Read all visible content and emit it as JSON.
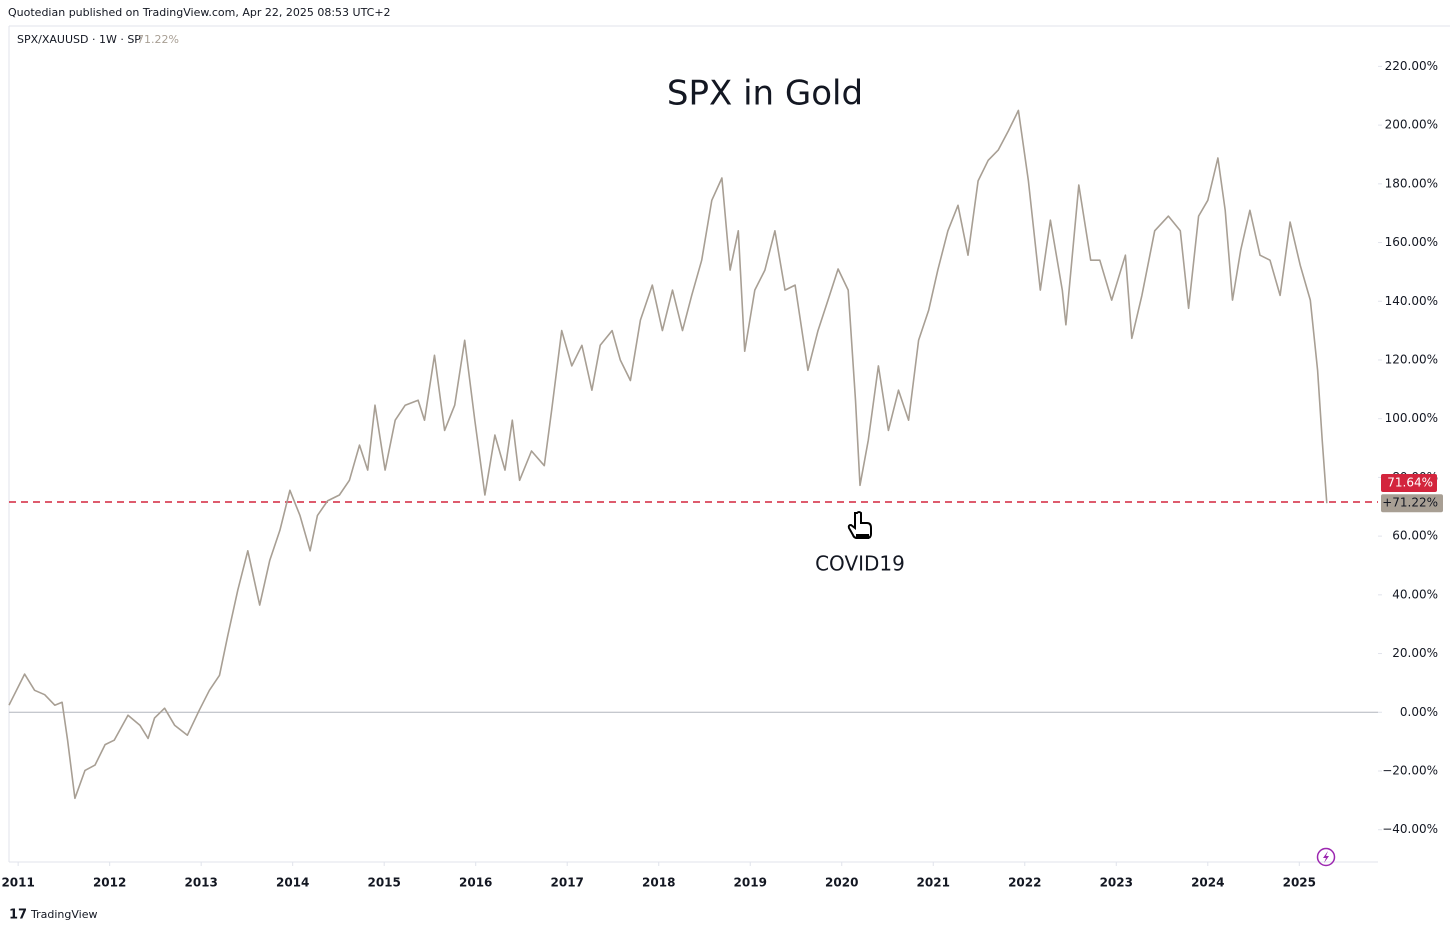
{
  "attribution": "Quotedian published on TradingView.com, Apr 22, 2025 08:53 UTC+2",
  "footer": "TradingView",
  "chart_data": {
    "type": "line",
    "title": "SPX in Gold",
    "symbol": "SPX/XAUUSD · 1W · SP",
    "annotation": "COVID19",
    "color": "#a89f94",
    "grid": false,
    "xlim": [
      2010.9,
      2025.86
    ],
    "xticks": [
      2011,
      2012,
      2013,
      2014,
      2015,
      2016,
      2017,
      2018,
      2019,
      2020,
      2021,
      2022,
      2023,
      2024,
      2025
    ],
    "ylim": [
      -51,
      232.4
    ],
    "yticks": [
      {
        "value": -40,
        "label": "−40.00%"
      },
      {
        "value": -20,
        "label": "−20.00%"
      },
      {
        "value": 0,
        "label": "0.00%"
      },
      {
        "value": 20,
        "label": "20.00%"
      },
      {
        "value": 40,
        "label": "40.00%"
      },
      {
        "value": 60,
        "label": "60.00%"
      },
      {
        "value": 80,
        "label": "80.00%"
      },
      {
        "value": 100,
        "label": "100.00%"
      },
      {
        "value": 120,
        "label": "120.00%"
      },
      {
        "value": 140,
        "label": "140.00%"
      },
      {
        "value": 160,
        "label": "160.00%"
      },
      {
        "value": 180,
        "label": "180.00%"
      },
      {
        "value": 200,
        "label": "200.00%"
      },
      {
        "value": 220,
        "label": "220.00%"
      }
    ],
    "last": {
      "value": 71.22,
      "header_label": "71.22%",
      "axis_label": "+71.22%"
    },
    "price_line": {
      "value": 71.64,
      "label": "71.64%",
      "color": "#d3253d"
    },
    "x": [
      2010.9,
      2011.07,
      2011.18,
      2011.29,
      2011.4,
      2011.48,
      2011.54,
      2011.62,
      2011.73,
      2011.84,
      2011.95,
      2012.05,
      2012.2,
      2012.33,
      2012.42,
      2012.49,
      2012.6,
      2012.71,
      2012.85,
      2012.98,
      2013.09,
      2013.2,
      2013.29,
      2013.4,
      2013.51,
      2013.64,
      2013.75,
      2013.86,
      2013.97,
      2014.08,
      2014.19,
      2014.27,
      2014.38,
      2014.51,
      2014.62,
      2014.73,
      2014.82,
      2014.9,
      2015.01,
      2015.12,
      2015.23,
      2015.37,
      2015.44,
      2015.55,
      2015.66,
      2015.77,
      2015.88,
      2015.99,
      2016.1,
      2016.21,
      2016.32,
      2016.4,
      2016.48,
      2016.61,
      2016.75,
      2016.83,
      2016.94,
      2017.05,
      2017.16,
      2017.27,
      2017.36,
      2017.49,
      2017.58,
      2017.69,
      2017.8,
      2017.93,
      2018.04,
      2018.15,
      2018.26,
      2018.36,
      2018.47,
      2018.58,
      2018.69,
      2018.78,
      2018.87,
      2018.94,
      2019.05,
      2019.16,
      2019.27,
      2019.38,
      2019.49,
      2019.63,
      2019.74,
      2019.85,
      2019.96,
      2020.07,
      2020.15,
      2020.2,
      2020.29,
      2020.4,
      2020.51,
      2020.62,
      2020.73,
      2020.84,
      2020.95,
      2021.05,
      2021.16,
      2021.27,
      2021.38,
      2021.49,
      2021.6,
      2021.71,
      2021.82,
      2021.93,
      2022.04,
      2022.17,
      2022.28,
      2022.41,
      2022.45,
      2022.59,
      2022.72,
      2022.82,
      2022.95,
      2023.1,
      2023.17,
      2023.28,
      2023.42,
      2023.57,
      2023.7,
      2023.79,
      2023.9,
      2024.0,
      2024.11,
      2024.19,
      2024.27,
      2024.36,
      2024.46,
      2024.57,
      2024.68,
      2024.79,
      2024.9,
      2025.01,
      2025.12,
      2025.2,
      2025.25,
      2025.3
    ],
    "values": [
      2.4,
      13,
      7.5,
      6,
      2.4,
      3.4,
      -9.5,
      -29.3,
      -19.8,
      -18,
      -11,
      -9.5,
      -1,
      -4.4,
      -8.9,
      -2,
      1.4,
      -4.4,
      -7.8,
      0.7,
      7.5,
      12.6,
      26,
      41.6,
      55,
      36.5,
      51.8,
      62,
      75.6,
      67,
      55,
      67,
      72,
      74,
      79,
      91,
      82.5,
      104.6,
      82.5,
      99.5,
      104.6,
      106.3,
      99.5,
      121.6,
      96,
      104.6,
      126.7,
      99.5,
      74,
      94.4,
      82.5,
      99.5,
      79,
      89,
      84,
      103,
      130,
      118,
      125,
      109.7,
      125,
      130,
      120,
      113,
      133.6,
      145.5,
      130,
      143.8,
      130,
      142,
      154,
      174.4,
      182,
      150.6,
      164,
      123,
      143.8,
      150.6,
      164,
      143.8,
      145.5,
      116.5,
      130,
      140.4,
      151,
      143.8,
      106.3,
      77.3,
      92.7,
      118,
      96,
      109.7,
      99.5,
      126.7,
      137,
      150.6,
      164,
      172.7,
      155.7,
      181,
      188,
      191.5,
      198,
      205,
      181,
      143.8,
      167.6,
      143.8,
      132,
      179.6,
      154,
      154,
      140.4,
      155.7,
      127.4,
      142,
      164,
      169,
      164,
      137.6,
      169,
      174.4,
      188.8,
      171,
      140.4,
      157.4,
      171,
      155.7,
      154,
      142,
      167,
      152.3,
      140.4,
      116.5,
      92.7,
      71.22
    ]
  }
}
